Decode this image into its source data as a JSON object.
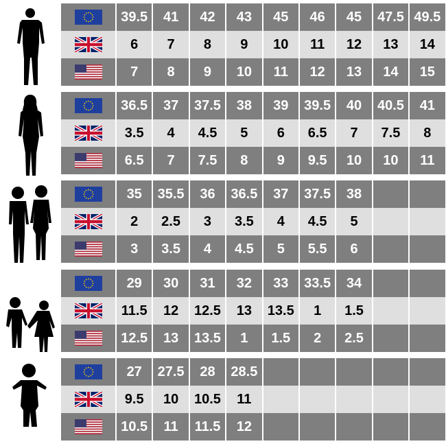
{
  "colors": {
    "dark_row": "#7f7f7f",
    "light_row": "#dfdfdf",
    "text_dark_row": "#ffffff",
    "text_light_row": "#000000"
  },
  "row_flags": [
    "eu-flag-icon",
    "uk-flag-icon",
    "us-flag-icon"
  ],
  "groups": [
    {
      "silhouette": "man-silhouette-icon",
      "eu": [
        "39.5",
        "41",
        "42",
        "43",
        "45",
        "46",
        "45",
        "47.5",
        "49.5"
      ],
      "uk": [
        "6",
        "7",
        "8",
        "9",
        "10",
        "11",
        "12",
        "13",
        "14"
      ],
      "us": [
        "7",
        "8",
        "9",
        "10",
        "11",
        "12",
        "13",
        "14",
        "15"
      ]
    },
    {
      "silhouette": "woman-silhouette-icon",
      "eu": [
        "36.5",
        "37",
        "37.5",
        "38",
        "39",
        "39.5",
        "40",
        "40.5",
        "41"
      ],
      "uk": [
        "3.5",
        "4",
        "4.5",
        "5",
        "6",
        "6.5",
        "7",
        "7.5",
        "8"
      ],
      "us": [
        "6.5",
        "7",
        "7.5",
        "8",
        "9",
        "9.5",
        "10",
        "10",
        "11"
      ]
    },
    {
      "silhouette": "teens-silhouette-icon",
      "eu": [
        "35",
        "35.5",
        "36",
        "36.5",
        "37",
        "37.5",
        "38",
        "",
        ""
      ],
      "uk": [
        "2",
        "2.5",
        "3",
        "3.5",
        "4",
        "4.5",
        "5",
        "",
        ""
      ],
      "us": [
        "3",
        "3.5",
        "4",
        "4.5",
        "5",
        "5.5",
        "6",
        "",
        ""
      ]
    },
    {
      "silhouette": "children-silhouette-icon",
      "eu": [
        "29",
        "30",
        "31",
        "32",
        "33",
        "33.5",
        "34",
        "",
        ""
      ],
      "uk": [
        "11.5",
        "12",
        "12.5",
        "13",
        "13.5",
        "1",
        "1.5",
        "",
        ""
      ],
      "us": [
        "12.5",
        "13",
        "13.5",
        "1",
        "1.5",
        "2",
        "2.5",
        "",
        ""
      ]
    },
    {
      "silhouette": "toddler-silhouette-icon",
      "eu": [
        "27",
        "27.5",
        "28",
        "28.5",
        "",
        "",
        "",
        "",
        ""
      ],
      "uk": [
        "9.5",
        "10",
        "10.5",
        "11",
        "",
        "",
        "",
        "",
        ""
      ],
      "us": [
        "10.5",
        "11",
        "11.5",
        "12",
        "",
        "",
        "",
        "",
        ""
      ]
    }
  ]
}
